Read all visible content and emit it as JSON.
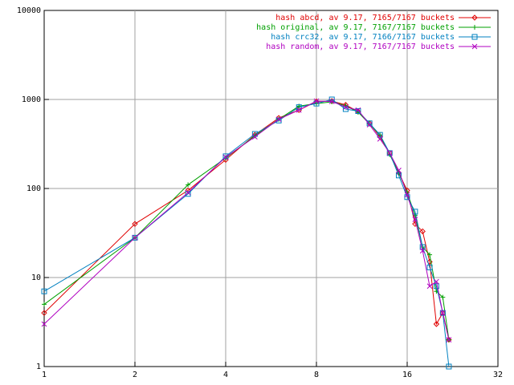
{
  "chart_data": {
    "type": "line",
    "xscale": "log",
    "yscale": "log",
    "grid": true,
    "legend": "top-right",
    "x": [
      1,
      2,
      3,
      4,
      5,
      6,
      7,
      8,
      9,
      10,
      11,
      12,
      13,
      14,
      15,
      16,
      17,
      18,
      19,
      20,
      21,
      22
    ],
    "xlim": [
      1,
      32
    ],
    "xticks": [
      1,
      2,
      4,
      8,
      16,
      32
    ],
    "ylim": [
      1,
      10000
    ],
    "yticks": [
      1,
      10,
      100,
      1000,
      10000
    ],
    "series": [
      {
        "name": "hash abcd, av 9.17, 7165/7167 buckets",
        "color": "#e00000",
        "marker": "diamond",
        "values": [
          4,
          40,
          95,
          210,
          400,
          620,
          760,
          950,
          960,
          870,
          730,
          540,
          380,
          250,
          150,
          95,
          40,
          33,
          15,
          3,
          4,
          2
        ]
      },
      {
        "name": "hash original, av 9.17, 7167/7167 buckets",
        "color": "#00a000",
        "marker": "plus",
        "values": [
          5,
          28,
          110,
          220,
          390,
          600,
          840,
          900,
          940,
          850,
          720,
          530,
          400,
          240,
          150,
          90,
          50,
          22,
          18,
          7,
          6,
          2
        ]
      },
      {
        "name": "hash crc32, av 9.17, 7166/7167 buckets",
        "color": "#0080c0",
        "marker": "square",
        "values": [
          7,
          28,
          87,
          230,
          410,
          580,
          820,
          900,
          1000,
          780,
          740,
          540,
          400,
          250,
          140,
          80,
          55,
          22,
          13,
          8,
          4,
          1
        ]
      },
      {
        "name": "hash random, av 9.17, 7167/7167 buckets",
        "color": "#b000c0",
        "marker": "cross",
        "values": [
          3,
          28,
          90,
          225,
          380,
          600,
          760,
          960,
          950,
          820,
          760,
          520,
          360,
          250,
          160,
          85,
          45,
          20,
          8,
          9,
          4,
          2
        ]
      }
    ]
  }
}
